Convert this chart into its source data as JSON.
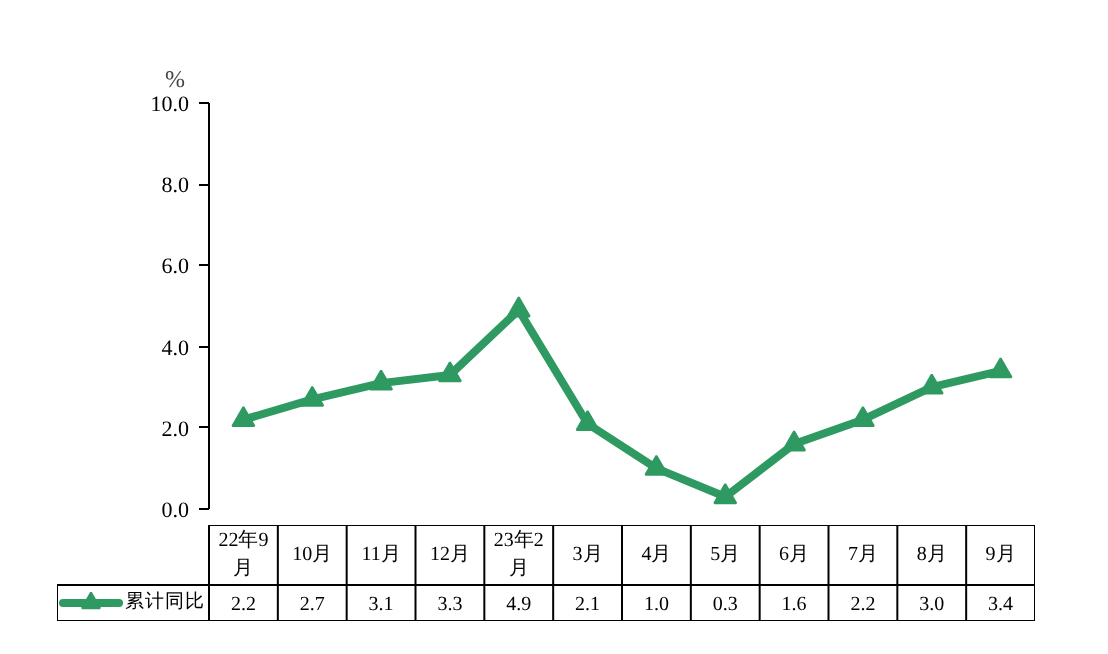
{
  "chart_data": {
    "type": "line",
    "ylabel": "%",
    "categories": [
      "22年9月",
      "10月",
      "11月",
      "12月",
      "23年2月",
      "3月",
      "4月",
      "5月",
      "6月",
      "7月",
      "8月",
      "9月"
    ],
    "series": [
      {
        "name": "累计同比",
        "color": "#2e9a62",
        "values": [
          2.2,
          2.7,
          3.1,
          3.3,
          4.9,
          2.1,
          1.0,
          0.3,
          1.6,
          2.2,
          3.0,
          3.4
        ],
        "value_labels": [
          "2.2",
          "2.7",
          "3.1",
          "3.3",
          "4.9",
          "2.1",
          "1.0",
          "0.3",
          "1.6",
          "2.2",
          "3.0",
          "3.4"
        ]
      }
    ],
    "ylim": [
      0,
      10
    ],
    "yticks": [
      {
        "value": 0,
        "label": "0.0"
      },
      {
        "value": 2,
        "label": "2.0"
      },
      {
        "value": 4,
        "label": "4.0"
      },
      {
        "value": 6,
        "label": "6.0"
      },
      {
        "value": 8,
        "label": "8.0"
      },
      {
        "value": 10,
        "label": "10.0"
      }
    ],
    "marker": "triangle",
    "line_style": "solid",
    "grid": false,
    "legend": "bottom"
  }
}
